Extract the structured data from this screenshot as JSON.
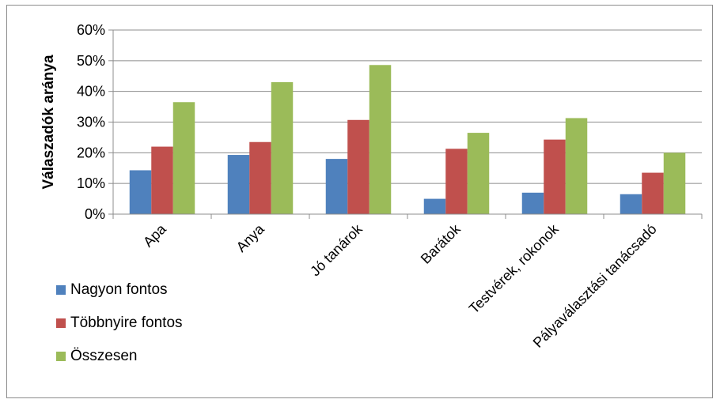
{
  "chart_data": {
    "type": "bar",
    "title": "",
    "xlabel": "",
    "ylabel": "Válaszadók aránya",
    "ylim": [
      0,
      60
    ],
    "yticks": [
      "0%",
      "10%",
      "20%",
      "30%",
      "40%",
      "50%",
      "60%"
    ],
    "grid": true,
    "legend_position": "bottom-left",
    "categories": [
      "Apa",
      "Anya",
      "Jó tanárok",
      "Barátok",
      "Testvérek, rokonok",
      "Pályaválasztási tanácsadó"
    ],
    "series": [
      {
        "name": "Nagyon fontos",
        "color": "#4f81bd",
        "values": [
          14.3,
          19.3,
          18,
          5,
          7,
          6.5
        ]
      },
      {
        "name": "Többnyire fontos",
        "color": "#c0504d",
        "values": [
          22,
          23.5,
          30.7,
          21.3,
          24.3,
          13.5
        ]
      },
      {
        "name": "Összesen",
        "color": "#9bbb59",
        "values": [
          36.5,
          43,
          48.6,
          26.5,
          31.3,
          20
        ]
      }
    ]
  }
}
